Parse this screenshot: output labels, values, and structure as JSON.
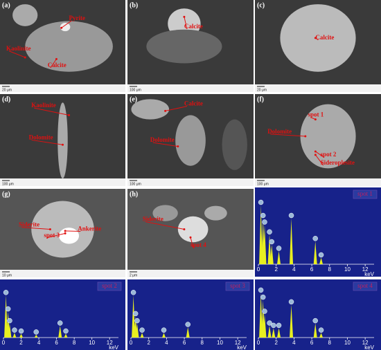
{
  "panels": [
    {
      "label": "(a)",
      "scale": "20 μm",
      "annotations": [
        "Pyrite",
        "Kaolinite",
        "Calcite"
      ]
    },
    {
      "label": "(b)",
      "scale": "100 μm",
      "annotations": [
        "Calcite"
      ]
    },
    {
      "label": "(c)",
      "scale": "20 μm",
      "annotations": [
        "Calcite"
      ]
    },
    {
      "label": "(d)",
      "scale": "100 μm",
      "annotations": [
        "Kaolinite",
        "Dolomite"
      ]
    },
    {
      "label": "(e)",
      "scale": "100 μm",
      "annotations": [
        "Calcite",
        "Dolomite"
      ]
    },
    {
      "label": "(f)",
      "scale": "100 μm",
      "annotations": [
        "Dolomite",
        "spot 1",
        "spot 2",
        "Sideroplesite"
      ]
    },
    {
      "label": "(g)",
      "scale": "10 μm",
      "annotations": [
        "Siderite",
        "spot 3",
        "Ankerite"
      ]
    },
    {
      "label": "(h)",
      "scale": "2 μm",
      "annotations": [
        "Siderite",
        "spot 4"
      ]
    }
  ],
  "spectrum_axis": {
    "unit": "keV",
    "xlim": [
      0,
      13
    ],
    "ticks": [
      0,
      2,
      4,
      6,
      8,
      10,
      12
    ]
  },
  "spectra": [
    {
      "name": "spot 1",
      "kev": [
        0.28,
        0.52,
        0.7,
        1.25,
        1.5,
        2.3,
        3.7,
        6.4,
        7.05
      ],
      "height": [
        0.9,
        0.7,
        0.6,
        0.45,
        0.3,
        0.2,
        0.7,
        0.35,
        0.1
      ]
    },
    {
      "name": "spot 2",
      "kev": [
        0.28,
        0.52,
        0.7,
        1.25,
        2.0,
        3.7,
        6.4,
        7.05
      ],
      "height": [
        0.9,
        0.55,
        0.3,
        0.1,
        0.08,
        0.06,
        0.25,
        0.08
      ]
    },
    {
      "name": "spot 3",
      "kev": [
        0.28,
        0.52,
        0.7,
        1.25,
        3.7,
        6.4
      ],
      "height": [
        0.9,
        0.45,
        0.3,
        0.1,
        0.1,
        0.22
      ]
    },
    {
      "name": "spot 4",
      "kev": [
        0.28,
        0.52,
        0.7,
        1.25,
        1.7,
        2.3,
        3.7,
        6.4,
        7.05
      ],
      "height": [
        0.95,
        0.8,
        0.5,
        0.25,
        0.2,
        0.2,
        0.7,
        0.3,
        0.1
      ]
    }
  ]
}
